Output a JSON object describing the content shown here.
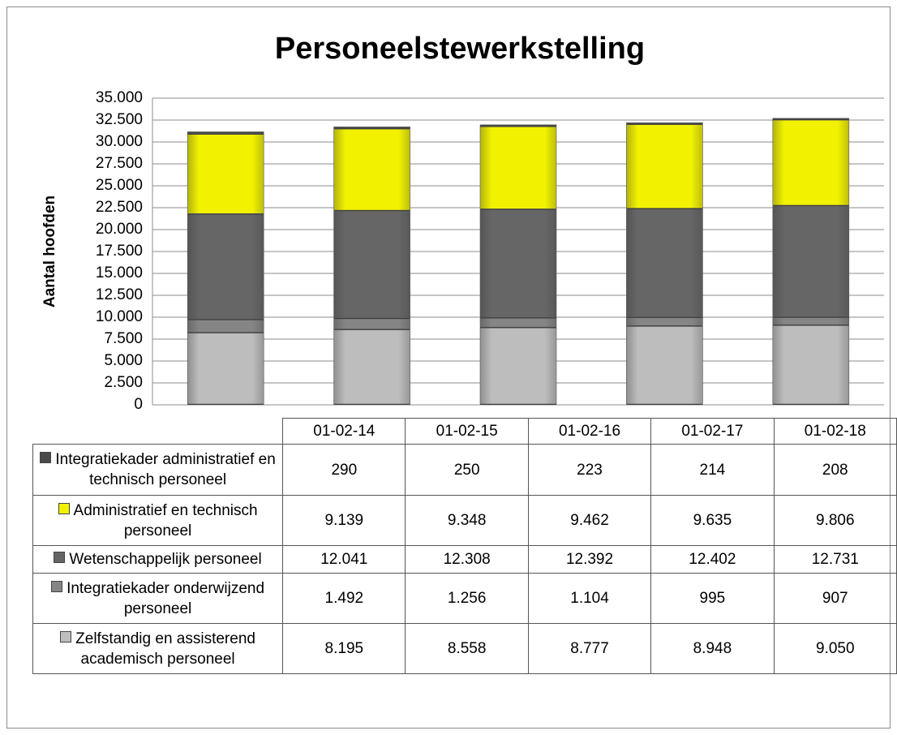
{
  "chart_data": {
    "type": "stacked-bar",
    "title": "Personeelstewerkstelling",
    "y_label": "Aantal hoofden",
    "categories": [
      "01-02-14",
      "01-02-15",
      "01-02-16",
      "01-02-17",
      "01-02-18"
    ],
    "series": [
      {
        "name": "Zelfstandig en assisterend academisch personeel",
        "color": "#bdbdbd",
        "values": [
          8195,
          8558,
          8777,
          8948,
          9050
        ],
        "value_labels": [
          "8.195",
          "8.558",
          "8.777",
          "8.948",
          "9.050"
        ]
      },
      {
        "name": "Integratiekader onderwijzend personeel",
        "color": "#858585",
        "values": [
          1492,
          1256,
          1104,
          995,
          907
        ],
        "value_labels": [
          "1.492",
          "1.256",
          "1.104",
          "995",
          "907"
        ]
      },
      {
        "name": "Wetenschappelijk personeel",
        "color": "#666666",
        "values": [
          12041,
          12308,
          12392,
          12402,
          12731
        ],
        "value_labels": [
          "12.041",
          "12.308",
          "12.392",
          "12.402",
          "12.731"
        ]
      },
      {
        "name": "Administratief en technisch personeel",
        "color": "#f2f200",
        "values": [
          9139,
          9348,
          9462,
          9635,
          9806
        ],
        "value_labels": [
          "9.139",
          "9.348",
          "9.462",
          "9.635",
          "9.806"
        ]
      },
      {
        "name": "Integratiekader administratief en technisch personeel",
        "color": "#4a4a4a",
        "values": [
          290,
          250,
          223,
          214,
          208
        ],
        "value_labels": [
          "290",
          "250",
          "223",
          "214",
          "208"
        ]
      }
    ],
    "ylim": [
      0,
      35000
    ],
    "yticks": [
      0,
      {
        "value": 2500,
        "label": "2.500"
      },
      {
        "value": 5000,
        "label": "5.000"
      },
      {
        "value": 7500,
        "label": "7.500"
      },
      {
        "value": 10000,
        "label": "10.000"
      },
      {
        "value": 12500,
        "label": "12.500"
      },
      {
        "value": 15000,
        "label": "15.000"
      },
      {
        "value": 17500,
        "label": "17.500"
      },
      {
        "value": 20000,
        "label": "20.000"
      },
      {
        "value": 22500,
        "label": "22.500"
      },
      {
        "value": 25000,
        "label": "25.000"
      },
      {
        "value": 27500,
        "label": "27.500"
      },
      {
        "value": 30000,
        "label": "30.000"
      },
      {
        "value": 32500,
        "label": "32.500"
      },
      {
        "value": 35000,
        "label": "35.000"
      }
    ],
    "grid": true
  }
}
